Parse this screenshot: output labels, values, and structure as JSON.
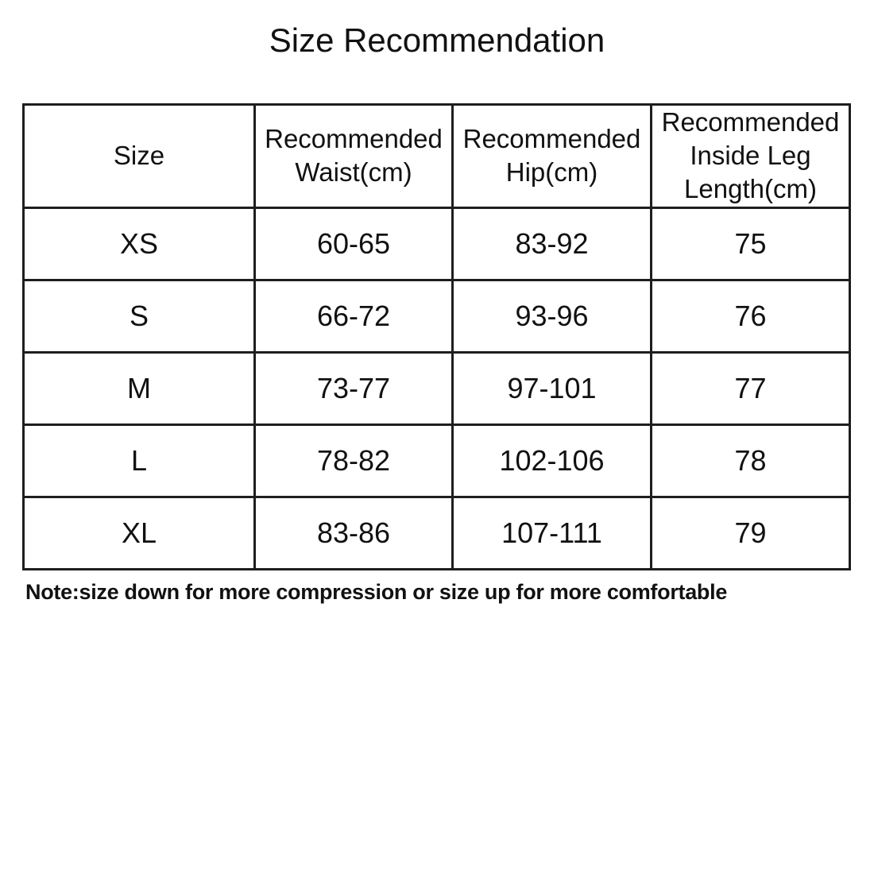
{
  "page": {
    "title": "Size Recommendation",
    "note": "Note:size down for more compression or size up for more comfortable",
    "background_color": "#ffffff",
    "text_color": "#111111",
    "border_color": "#1e1e1e"
  },
  "table": {
    "columns": [
      "Size",
      "Recommended\nWaist(cm)",
      "Recommended\nHip(cm)",
      "Recommended\nInside Leg\nLength(cm)"
    ],
    "rows": [
      {
        "size": "XS",
        "waist": "60-65",
        "hip": "83-92",
        "inside_leg": "75"
      },
      {
        "size": "S",
        "waist": "66-72",
        "hip": "93-96",
        "inside_leg": "76"
      },
      {
        "size": "M",
        "waist": "73-77",
        "hip": "97-101",
        "inside_leg": "77"
      },
      {
        "size": "L",
        "waist": "78-82",
        "hip": "102-106",
        "inside_leg": "78"
      },
      {
        "size": "XL",
        "waist": "83-86",
        "hip": "107-111",
        "inside_leg": "79"
      }
    ]
  },
  "chart_data": {
    "type": "table",
    "title": "Size Recommendation",
    "categories": [
      "XS",
      "S",
      "M",
      "L",
      "XL"
    ],
    "series": [
      {
        "name": "Recommended Waist(cm)",
        "values": [
          "60-65",
          "66-72",
          "73-77",
          "78-82",
          "83-86"
        ]
      },
      {
        "name": "Recommended Hip(cm)",
        "values": [
          "83-92",
          "93-96",
          "97-101",
          "102-106",
          "107-111"
        ]
      },
      {
        "name": "Recommended Inside Leg Length(cm)",
        "values": [
          75,
          76,
          77,
          78,
          79
        ]
      }
    ]
  }
}
